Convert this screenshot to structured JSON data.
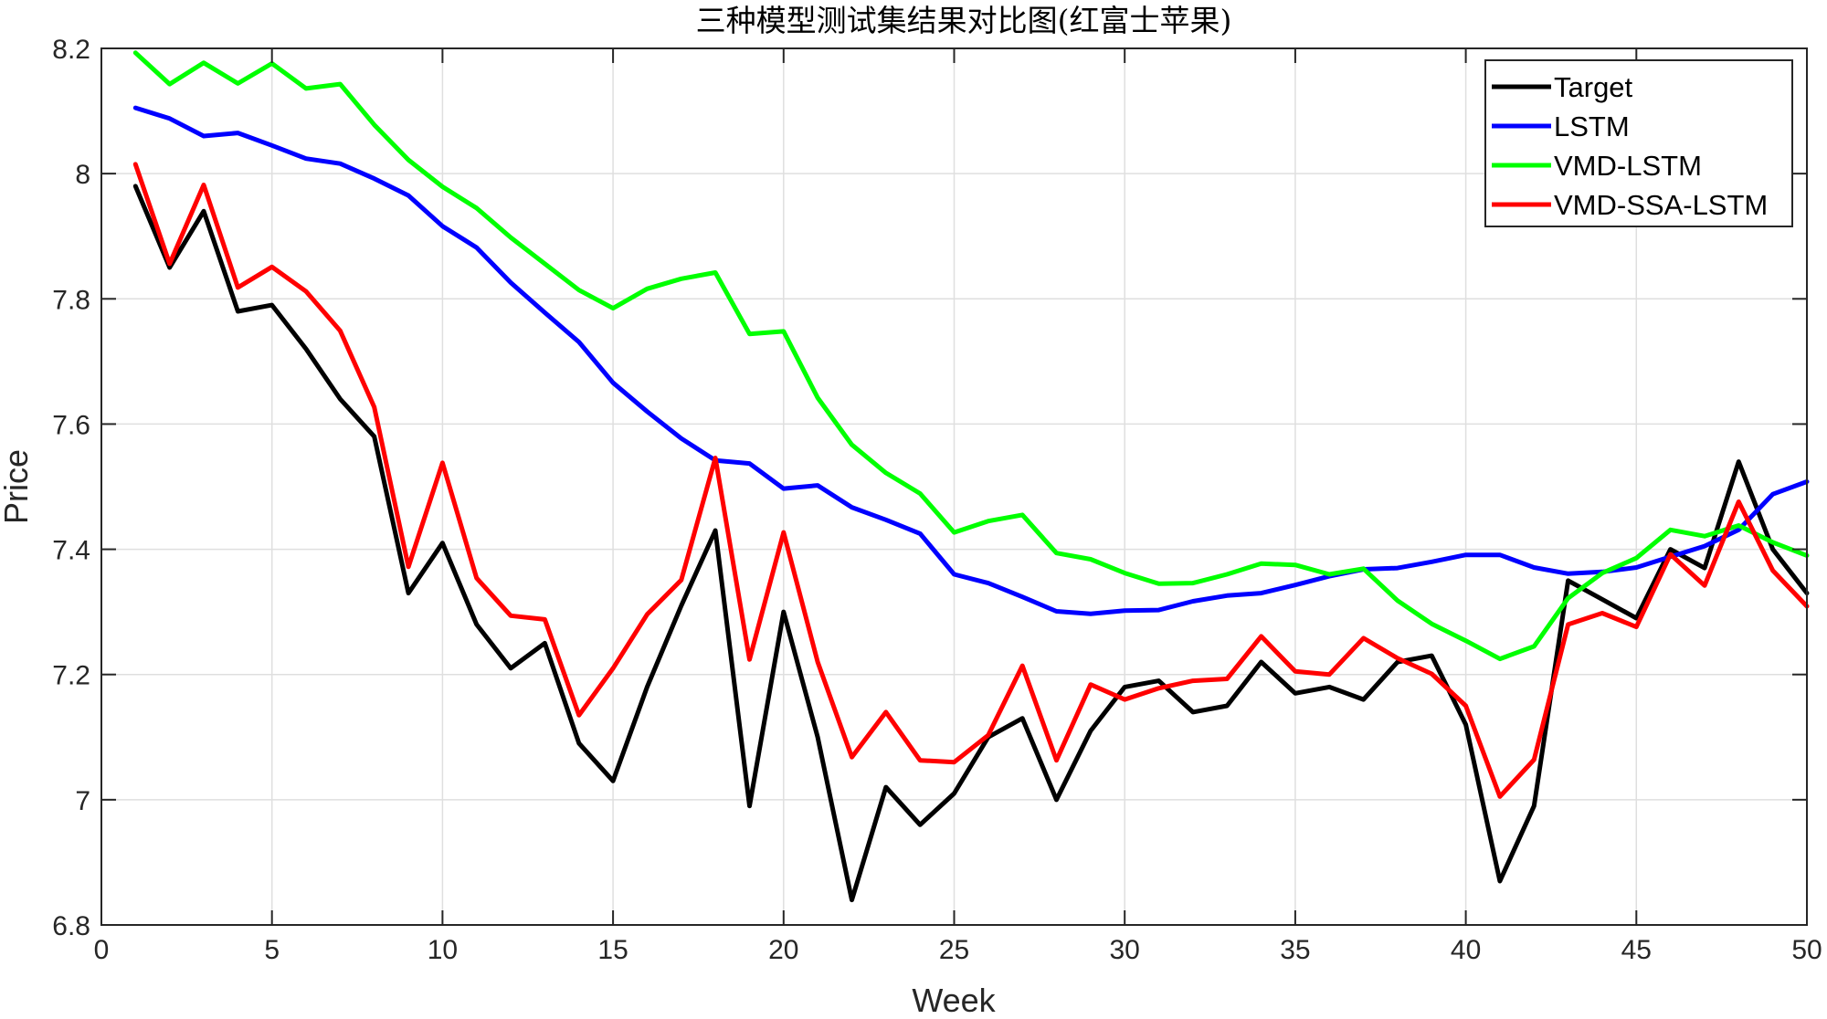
{
  "chart_data": {
    "type": "line",
    "title": "三种模型测试集结果对比图(红富士苹果)",
    "xlabel": "Week",
    "ylabel": "Price",
    "xlim": [
      0,
      50
    ],
    "ylim": [
      6.8,
      8.2
    ],
    "xticks": [
      0,
      5,
      10,
      15,
      20,
      25,
      30,
      35,
      40,
      45,
      50
    ],
    "yticks": [
      6.8,
      7,
      7.2,
      7.4,
      7.6,
      7.8,
      8,
      8.2
    ],
    "ytick_labels": [
      "6.8",
      "7",
      "7.2",
      "7.4",
      "7.6",
      "7.8",
      "8",
      "8.2"
    ],
    "grid": true,
    "legend_position": "top-right",
    "x": [
      1,
      2,
      3,
      4,
      5,
      6,
      7,
      8,
      9,
      10,
      11,
      12,
      13,
      14,
      15,
      16,
      17,
      18,
      19,
      20,
      21,
      22,
      23,
      24,
      25,
      26,
      27,
      28,
      29,
      30,
      31,
      32,
      33,
      34,
      35,
      36,
      37,
      38,
      39,
      40,
      41,
      42,
      43,
      44,
      45,
      46,
      47,
      48,
      49,
      50
    ],
    "series": [
      {
        "name": "Target",
        "color": "#000000",
        "values": [
          7.98,
          7.85,
          7.94,
          7.78,
          7.79,
          7.72,
          7.64,
          7.58,
          7.33,
          7.41,
          7.28,
          7.21,
          7.25,
          7.09,
          7.03,
          7.18,
          7.31,
          7.43,
          6.99,
          7.3,
          7.1,
          6.84,
          7.02,
          6.96,
          7.01,
          7.1,
          7.13,
          7.0,
          7.11,
          7.18,
          7.19,
          7.14,
          7.15,
          7.22,
          7.17,
          7.18,
          7.16,
          7.22,
          7.23,
          7.12,
          6.87,
          6.99,
          7.35,
          7.32,
          7.29,
          7.4,
          7.37,
          7.54,
          7.4,
          7.33
        ]
      },
      {
        "name": "LSTM",
        "color": "#0000ff",
        "values": [
          8.105,
          8.088,
          8.06,
          8.065,
          8.045,
          8.024,
          8.016,
          7.992,
          7.965,
          7.916,
          7.882,
          7.826,
          7.778,
          7.731,
          7.666,
          7.62,
          7.577,
          7.542,
          7.537,
          7.497,
          7.502,
          7.467,
          7.447,
          7.425,
          7.36,
          7.346,
          7.324,
          7.301,
          7.297,
          7.302,
          7.303,
          7.317,
          7.326,
          7.33,
          7.343,
          7.357,
          7.368,
          7.37,
          7.38,
          7.391,
          7.391,
          7.371,
          7.361,
          7.364,
          7.371,
          7.388,
          7.405,
          7.431,
          7.488,
          7.508
        ]
      },
      {
        "name": "VMD-LSTM",
        "color": "#00ff00",
        "values": [
          8.193,
          8.143,
          8.177,
          8.144,
          8.176,
          8.136,
          8.143,
          8.078,
          8.022,
          7.979,
          7.945,
          7.898,
          7.856,
          7.814,
          7.785,
          7.816,
          7.832,
          7.842,
          7.744,
          7.748,
          7.642,
          7.567,
          7.522,
          7.489,
          7.427,
          7.445,
          7.455,
          7.394,
          7.384,
          7.362,
          7.345,
          7.346,
          7.36,
          7.377,
          7.375,
          7.36,
          7.369,
          7.318,
          7.281,
          7.254,
          7.225,
          7.245,
          7.322,
          7.362,
          7.386,
          7.431,
          7.421,
          7.438,
          7.411,
          7.39
        ]
      },
      {
        "name": "VMD-SSA-LSTM",
        "color": "#ff0000",
        "values": [
          8.015,
          7.856,
          7.982,
          7.818,
          7.851,
          7.812,
          7.749,
          7.627,
          7.372,
          7.538,
          7.354,
          7.294,
          7.288,
          7.135,
          7.21,
          7.296,
          7.351,
          7.546,
          7.224,
          7.427,
          7.22,
          7.068,
          7.14,
          7.063,
          7.06,
          7.103,
          7.214,
          7.063,
          7.184,
          7.16,
          7.178,
          7.19,
          7.193,
          7.261,
          7.205,
          7.2,
          7.258,
          7.226,
          7.201,
          7.15,
          7.005,
          7.064,
          7.28,
          7.298,
          7.276,
          7.392,
          7.342,
          7.476,
          7.366,
          7.309
        ]
      }
    ]
  }
}
